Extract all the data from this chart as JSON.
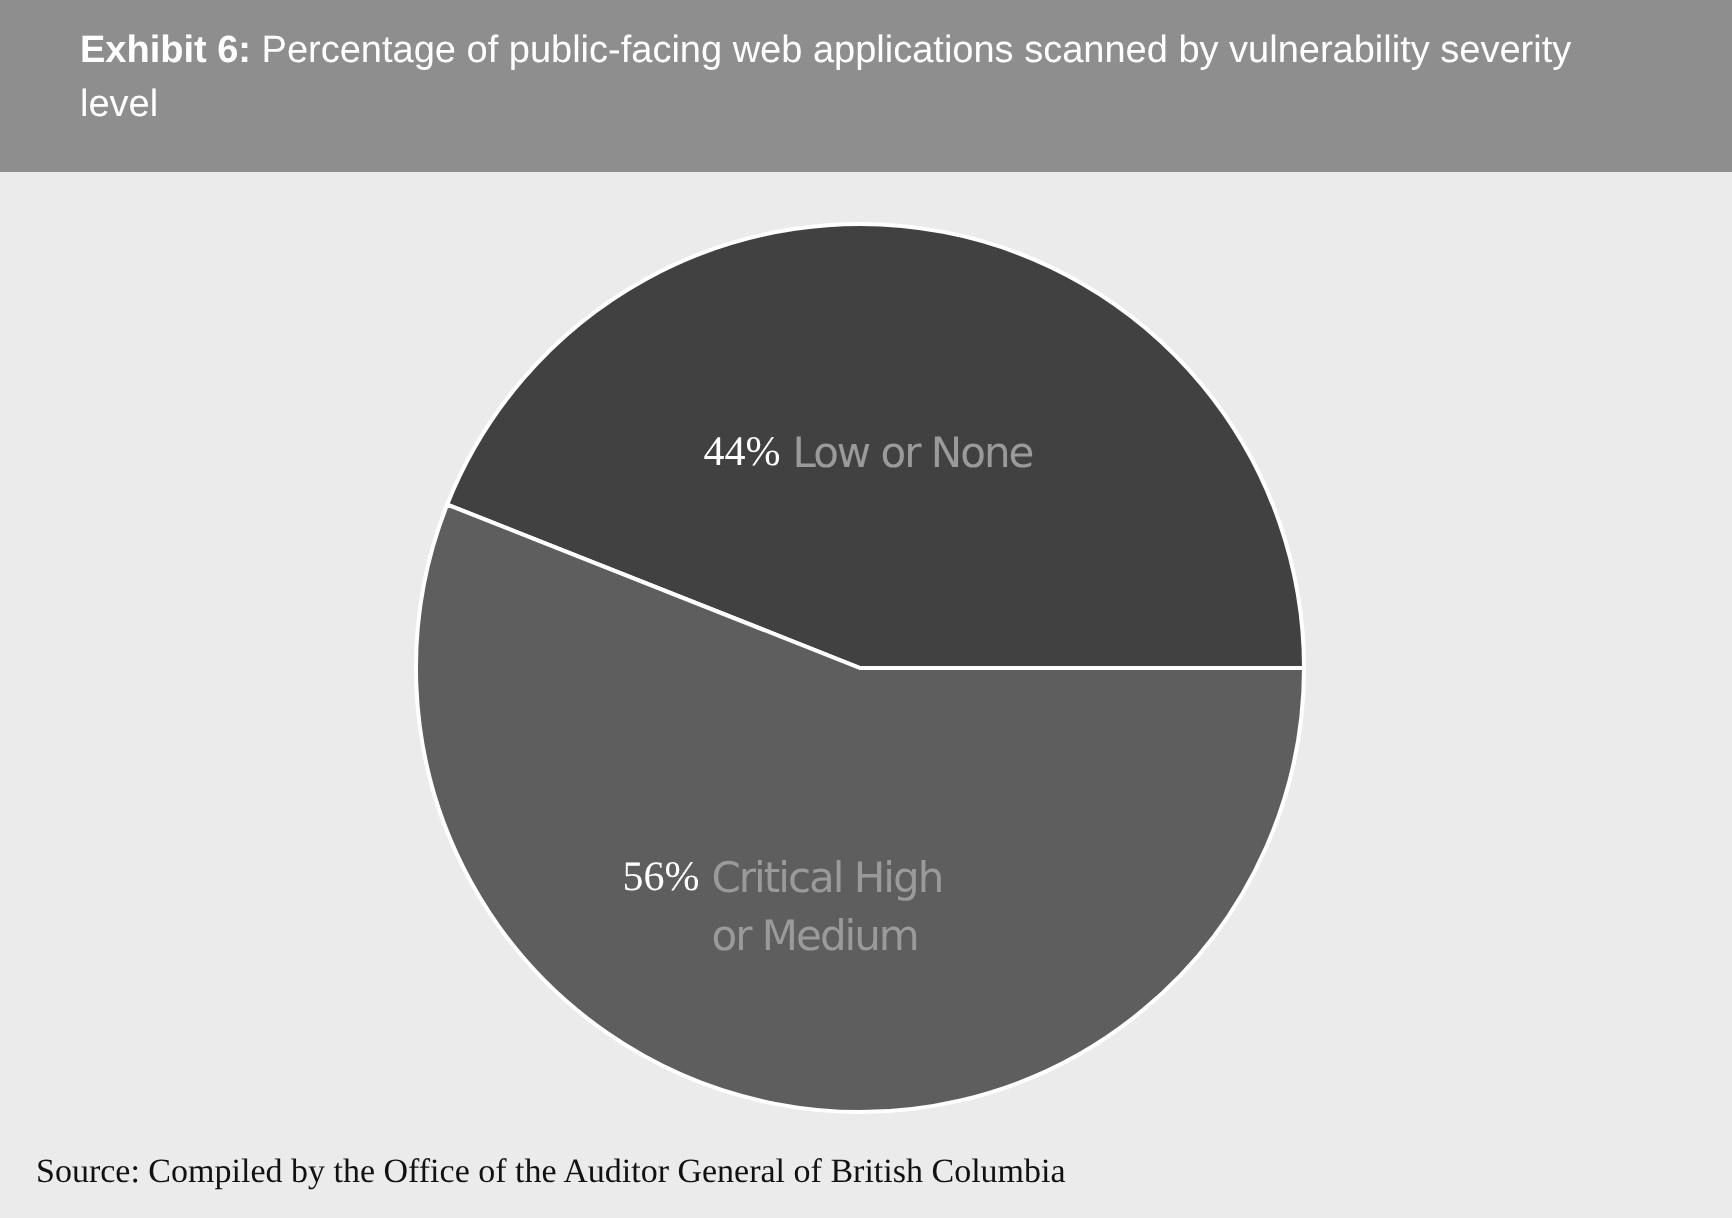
{
  "chart_data": {
    "type": "pie",
    "title": "Exhibit 6: Percentage of public-facing web applications scanned by vulnerability severity level",
    "categories": [
      "Low or None",
      "Critical High or Medium"
    ],
    "values": [
      44,
      56
    ],
    "value_labels": [
      "44%",
      "56%"
    ],
    "colors": [
      "#414141",
      "#5e5e5e"
    ],
    "annotations": [
      "Source: Compiled by the Office of the Auditor General of British Columbia"
    ]
  }
}
